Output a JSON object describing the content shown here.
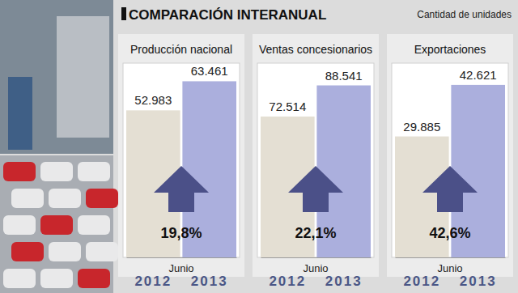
{
  "header": {
    "title": "COMPARACIÓN INTERANUAL",
    "unit": "Cantidad de unidades"
  },
  "chart_data": [
    {
      "type": "bar",
      "title": "Producción nacional",
      "xlabel": "Junio",
      "categories": [
        "2012",
        "2013"
      ],
      "values": [
        52983,
        63461
      ],
      "value_labels": [
        "52.983",
        "63.461"
      ],
      "colors": [
        "#e4dfd3",
        "#abafdd"
      ],
      "ylim": [
        0,
        70000
      ],
      "data_labels": true,
      "tick_labels": "x",
      "annotation": "19,8%"
    },
    {
      "type": "bar",
      "title": "Ventas concesionarios",
      "xlabel": "Junio",
      "categories": [
        "2012",
        "2013"
      ],
      "values": [
        72514,
        88541
      ],
      "value_labels": [
        "72.514",
        "88.541"
      ],
      "colors": [
        "#e4dfd3",
        "#abafdd"
      ],
      "ylim": [
        0,
        100000
      ],
      "data_labels": true,
      "tick_labels": "x",
      "annotation": "22,1%"
    },
    {
      "type": "bar",
      "title": "Exportaciones",
      "xlabel": "Junio",
      "categories": [
        "2012",
        "2013"
      ],
      "values": [
        29885,
        42621
      ],
      "value_labels": [
        "29.885",
        "42.621"
      ],
      "colors": [
        "#e4dfd3",
        "#abafdd"
      ],
      "ylim": [
        0,
        48000
      ],
      "data_labels": true,
      "tick_labels": "x",
      "annotation": "42,6%"
    }
  ]
}
